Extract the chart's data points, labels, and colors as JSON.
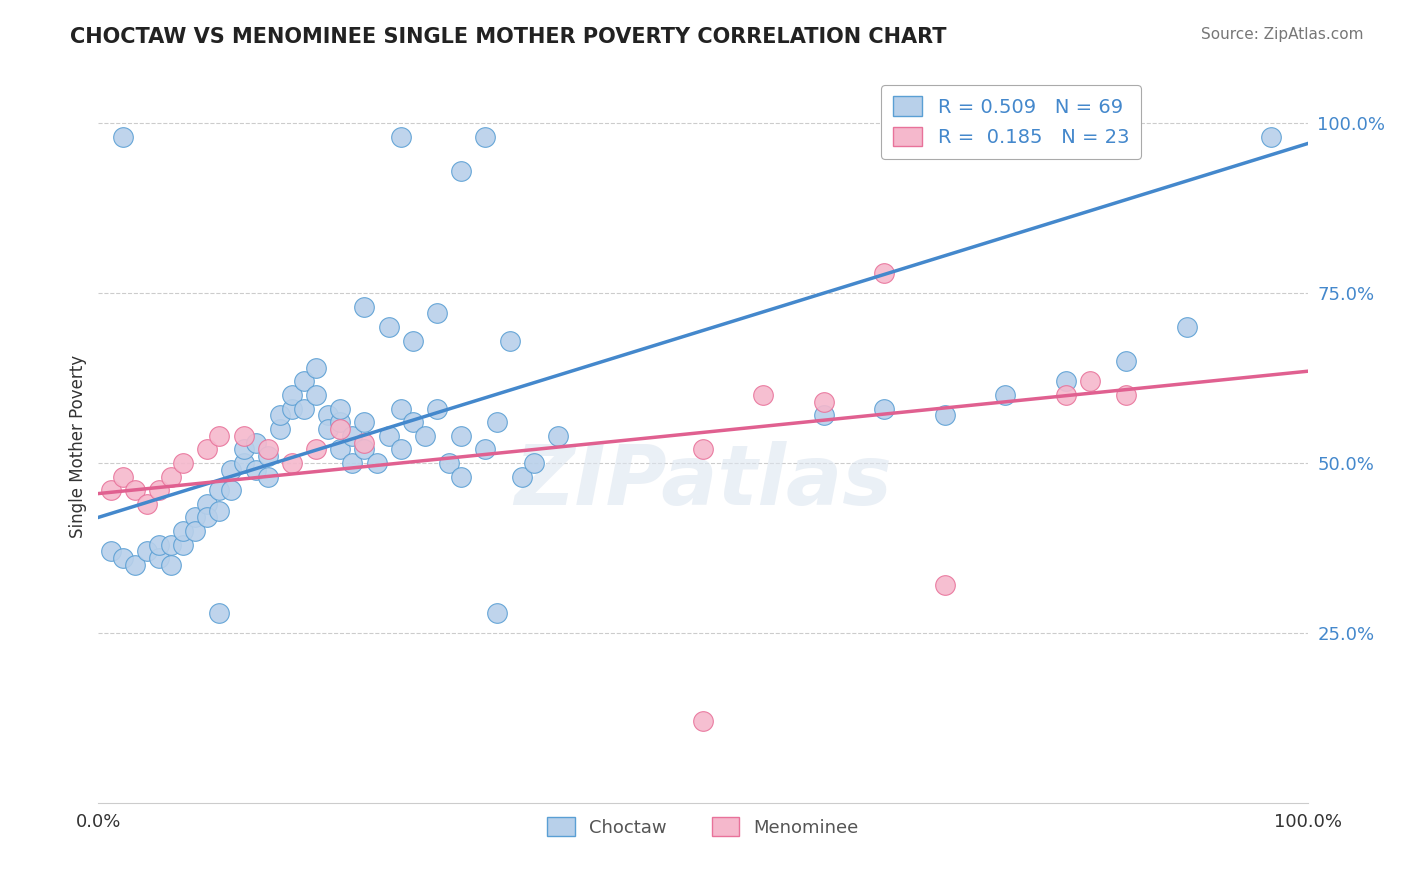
{
  "title": "CHOCTAW VS MENOMINEE SINGLE MOTHER POVERTY CORRELATION CHART",
  "source": "Source: ZipAtlas.com",
  "ylabel": "Single Mother Poverty",
  "ytick_labels": [
    "25.0%",
    "50.0%",
    "75.0%",
    "100.0%"
  ],
  "ytick_values": [
    0.25,
    0.5,
    0.75,
    1.0
  ],
  "xlim": [
    0.0,
    1.0
  ],
  "ylim": [
    0.0,
    1.05
  ],
  "choctaw_R": 0.509,
  "choctaw_N": 69,
  "menominee_R": 0.185,
  "menominee_N": 23,
  "choctaw_color": "#b8d0ea",
  "menominee_color": "#f5b8cc",
  "choctaw_edge_color": "#5a9fd4",
  "menominee_edge_color": "#e8729a",
  "choctaw_line_color": "#4488cc",
  "menominee_line_color": "#e06090",
  "tick_color": "#4488cc",
  "background_color": "#ffffff",
  "grid_color": "#cccccc",
  "watermark": "ZIPatlas",
  "choc_line_x0": 0.0,
  "choc_line_y0": 0.42,
  "choc_line_x1": 1.0,
  "choc_line_y1": 0.97,
  "men_line_x0": 0.0,
  "men_line_y0": 0.455,
  "men_line_x1": 1.0,
  "men_line_y1": 0.635,
  "choctaw_x": [
    0.01,
    0.02,
    0.03,
    0.04,
    0.05,
    0.05,
    0.06,
    0.06,
    0.07,
    0.07,
    0.08,
    0.08,
    0.09,
    0.09,
    0.1,
    0.1,
    0.11,
    0.11,
    0.12,
    0.12,
    0.13,
    0.13,
    0.14,
    0.14,
    0.15,
    0.15,
    0.16,
    0.16,
    0.17,
    0.17,
    0.18,
    0.18,
    0.19,
    0.19,
    0.2,
    0.2,
    0.2,
    0.21,
    0.21,
    0.22,
    0.22,
    0.23,
    0.24,
    0.25,
    0.25,
    0.26,
    0.27,
    0.28,
    0.29,
    0.3,
    0.3,
    0.32,
    0.33,
    0.35,
    0.36,
    0.38,
    0.22,
    0.24,
    0.26,
    0.28,
    0.6,
    0.65,
    0.7,
    0.75,
    0.8,
    0.85,
    0.9,
    0.97,
    0.33
  ],
  "choctaw_y": [
    0.37,
    0.36,
    0.35,
    0.37,
    0.36,
    0.38,
    0.35,
    0.38,
    0.38,
    0.4,
    0.42,
    0.4,
    0.44,
    0.42,
    0.43,
    0.46,
    0.46,
    0.49,
    0.5,
    0.52,
    0.53,
    0.49,
    0.51,
    0.48,
    0.55,
    0.57,
    0.58,
    0.6,
    0.58,
    0.62,
    0.6,
    0.64,
    0.57,
    0.55,
    0.56,
    0.58,
    0.52,
    0.54,
    0.5,
    0.56,
    0.52,
    0.5,
    0.54,
    0.52,
    0.58,
    0.56,
    0.54,
    0.58,
    0.5,
    0.54,
    0.48,
    0.52,
    0.56,
    0.48,
    0.5,
    0.54,
    0.73,
    0.7,
    0.68,
    0.72,
    0.57,
    0.58,
    0.57,
    0.6,
    0.62,
    0.65,
    0.7,
    0.98,
    0.28
  ],
  "choctaw_outliers_x": [
    0.02,
    0.25,
    0.3,
    0.32,
    0.34,
    0.1
  ],
  "choctaw_outliers_y": [
    0.98,
    0.98,
    0.93,
    0.98,
    0.68,
    0.28
  ],
  "menominee_x": [
    0.01,
    0.02,
    0.03,
    0.04,
    0.05,
    0.06,
    0.07,
    0.09,
    0.1,
    0.12,
    0.14,
    0.16,
    0.18,
    0.2,
    0.22,
    0.65,
    0.7,
    0.8,
    0.82,
    0.85,
    0.5,
    0.55,
    0.6
  ],
  "menominee_y": [
    0.46,
    0.48,
    0.46,
    0.44,
    0.46,
    0.48,
    0.5,
    0.52,
    0.54,
    0.54,
    0.52,
    0.5,
    0.52,
    0.55,
    0.53,
    0.78,
    0.32,
    0.6,
    0.62,
    0.6,
    0.52,
    0.6,
    0.59
  ]
}
